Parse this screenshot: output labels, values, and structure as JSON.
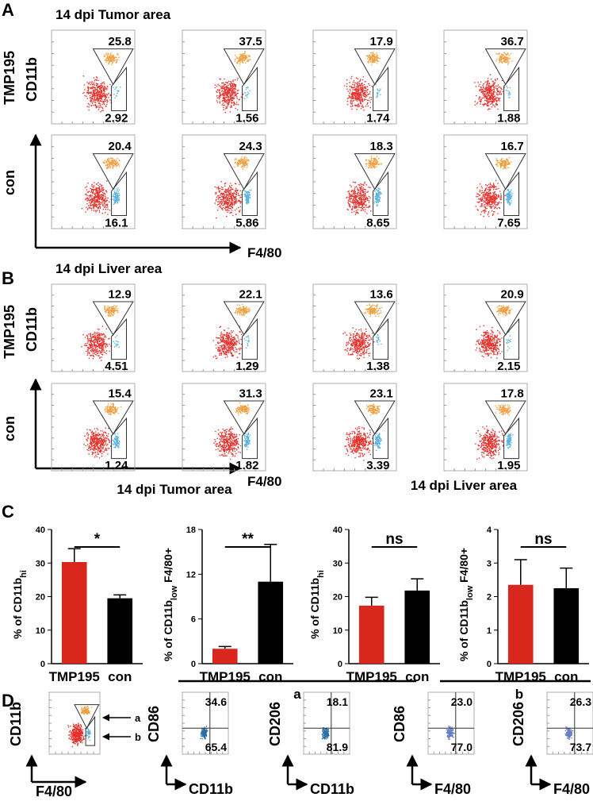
{
  "panel_a": {
    "label": "A",
    "title": "14 dpi Tumor area",
    "row_labels": [
      "TMP195",
      "con"
    ],
    "y_axis": "CD11b",
    "x_axis": "F4/80",
    "gates": [
      [
        [
          "25.8",
          "2.92"
        ],
        [
          "37.5",
          "1.56"
        ],
        [
          "17.9",
          "1.74"
        ],
        [
          "36.7",
          "1.88"
        ]
      ],
      [
        [
          "20.4",
          "16.1"
        ],
        [
          "24.3",
          "5.86"
        ],
        [
          "18.3",
          "8.65"
        ],
        [
          "16.7",
          "7.65"
        ]
      ]
    ]
  },
  "panel_b": {
    "label": "B",
    "title": "14 dpi Liver area",
    "row_labels": [
      "TMP195",
      "con"
    ],
    "y_axis": "CD11b",
    "x_axis": "F4/80",
    "gates": [
      [
        [
          "12.9",
          "4.51"
        ],
        [
          "22.1",
          "1.29"
        ],
        [
          "13.6",
          "1.38"
        ],
        [
          "20.9",
          "2.15"
        ]
      ],
      [
        [
          "15.4",
          "1.24"
        ],
        [
          "31.3",
          "1.82"
        ],
        [
          "23.1",
          "3.39"
        ],
        [
          "17.8",
          "1.95"
        ]
      ]
    ]
  },
  "panel_c": {
    "label": "C"
  },
  "chart_data": [
    {
      "type": "bar",
      "title": "14 dpi Tumor area",
      "ylabel": [
        "% of CD11b",
        "hi"
      ],
      "categories": [
        "TMP195",
        "con"
      ],
      "values": [
        30.3,
        19.5
      ],
      "errors": [
        4,
        1
      ],
      "colors": [
        "#d9271e",
        "#000000"
      ],
      "ylim": [
        0,
        40
      ],
      "yticks": [
        0,
        10,
        20,
        30,
        40
      ],
      "significance": "*"
    },
    {
      "type": "bar",
      "ylabel": [
        "% of CD11b",
        "low",
        " F4/80+"
      ],
      "categories": [
        "TMP195",
        "con"
      ],
      "values": [
        2,
        11
      ],
      "errors": [
        0.3,
        5
      ],
      "colors": [
        "#d9271e",
        "#000000"
      ],
      "ylim": [
        0,
        18
      ],
      "yticks": [
        0,
        6,
        12,
        18
      ],
      "significance": "**"
    },
    {
      "type": "bar",
      "title": "14 dpi Liver area",
      "ylabel": [
        "% of CD11b",
        "hi"
      ],
      "categories": [
        "TMP195",
        "con"
      ],
      "values": [
        17.3,
        21.8
      ],
      "errors": [
        2.5,
        3.5
      ],
      "colors": [
        "#d9271e",
        "#000000"
      ],
      "ylim": [
        0,
        40
      ],
      "yticks": [
        0,
        10,
        20,
        30,
        40
      ],
      "significance": "ns"
    },
    {
      "type": "bar",
      "ylabel": [
        "% of CD11b",
        "low",
        " F4/80+"
      ],
      "categories": [
        "TMP195",
        "con"
      ],
      "values": [
        2.35,
        2.25
      ],
      "errors": [
        0.75,
        0.6
      ],
      "colors": [
        "#d9271e",
        "#000000"
      ],
      "ylim": [
        0,
        4
      ],
      "yticks": [
        0,
        1,
        2,
        3,
        4
      ],
      "significance": "ns"
    }
  ],
  "panel_d": {
    "label": "D",
    "y_axis": "CD11b",
    "x_axis": "F4/80",
    "gate_names": [
      "a",
      "b"
    ],
    "groups": [
      "a",
      "b"
    ],
    "plots": [
      {
        "y_axis": "CD86",
        "x_axis": "CD11b",
        "upper": "34.6",
        "lower": "65.4"
      },
      {
        "y_axis": "CD206",
        "x_axis": "CD11b",
        "upper": "18.1",
        "lower": "81.9"
      },
      {
        "y_axis": "CD86",
        "x_axis": "F4/80",
        "upper": "23.0",
        "lower": "77.0"
      },
      {
        "y_axis": "CD206",
        "x_axis": "F4/80",
        "upper": "26.3",
        "lower": "73.7"
      }
    ]
  }
}
